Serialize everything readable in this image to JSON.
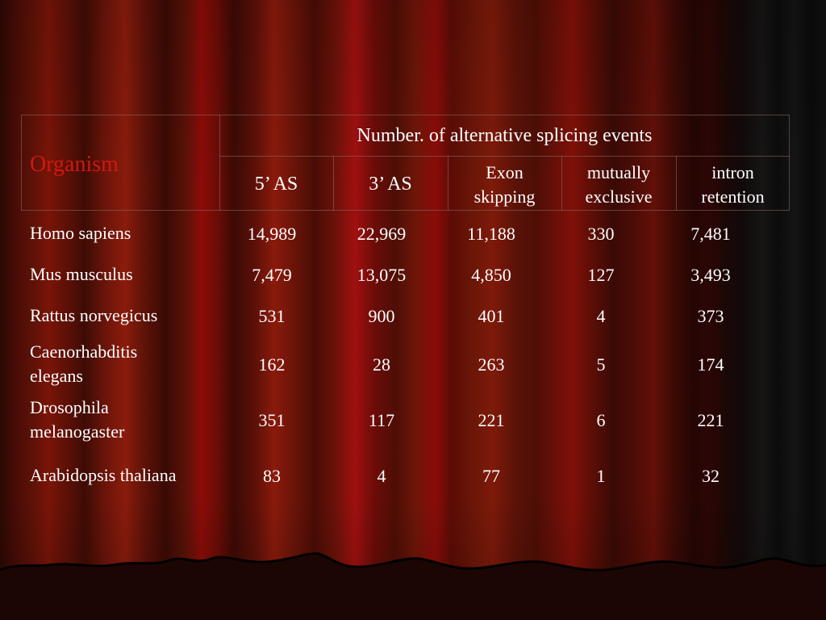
{
  "table": {
    "organism_header": "Organism",
    "group_header": "Number. of alternative splicing events",
    "columns": [
      "5’ AS",
      "3’ AS",
      "Exon skipping",
      "mutually exclusive",
      "intron retention"
    ],
    "column_lines": [
      [
        "5’ AS"
      ],
      [
        "3’ AS"
      ],
      [
        "Exon",
        "skipping"
      ],
      [
        "mutually",
        "exclusive"
      ],
      [
        "intron",
        "retention"
      ]
    ],
    "rows": [
      {
        "organism": "Homo sapiens",
        "values": [
          "14,989",
          "22,969",
          "11,188",
          "330",
          "7,481"
        ]
      },
      {
        "organism": "Mus musculus",
        "values": [
          "7,479",
          "13,075",
          "4,850",
          "127",
          "3,493"
        ]
      },
      {
        "organism": "Rattus norvegicus",
        "values": [
          "531",
          "900",
          "401",
          "4",
          "373"
        ]
      },
      {
        "organism": "Caenorhabditis elegans",
        "values": [
          "162",
          "28",
          "263",
          "5",
          "174"
        ]
      },
      {
        "organism": "Drosophila melanogaster",
        "values": [
          "351",
          "117",
          "221",
          "6",
          "221"
        ]
      },
      {
        "organism": "Arabidopsis thaliana",
        "values": [
          "83",
          "4",
          "77",
          "1",
          "32"
        ]
      }
    ]
  },
  "theme": {
    "curtain_red": "#8c0c08",
    "highlight_text": "#d01810",
    "text": "#ffffff"
  }
}
